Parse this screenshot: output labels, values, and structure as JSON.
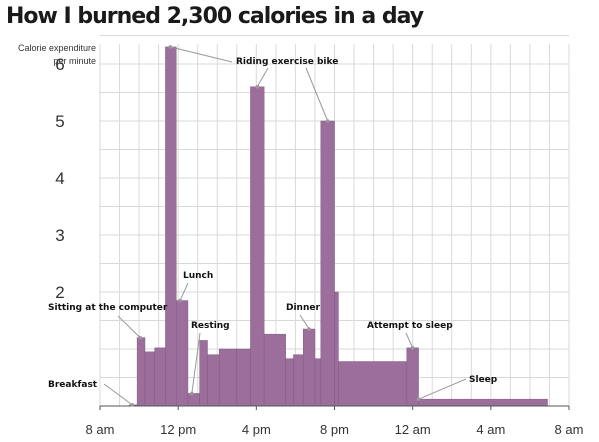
{
  "title": "How I burned 2,300 calories in a day",
  "colors": {
    "bar": "#9c6e9c",
    "bar_stroke": "#825982",
    "grid": "#d9d9d9",
    "annotation_line": "#999999"
  },
  "chart_data": {
    "type": "bar",
    "title": "How I burned 2,300 calories in a day",
    "ylabel": "Calorie expenditure per minute",
    "xlabel": "",
    "x_axis": "time of day (hours since midnight)",
    "xlim": [
      8,
      32
    ],
    "ylim": [
      0,
      7
    ],
    "grid": true,
    "x_ticks": [
      {
        "value": 8,
        "label": "8 am"
      },
      {
        "value": 12,
        "label": "12 pm"
      },
      {
        "value": 16,
        "label": "4 pm"
      },
      {
        "value": 20,
        "label": "8 pm"
      },
      {
        "value": 24,
        "label": "12 am"
      },
      {
        "value": 28,
        "label": "4 am"
      },
      {
        "value": 32,
        "label": "8 am"
      }
    ],
    "y_ticks": [
      {
        "value": 2,
        "label": "2"
      },
      {
        "value": 3,
        "label": "3"
      },
      {
        "value": 4,
        "label": "4"
      },
      {
        "value": 5,
        "label": "5"
      },
      {
        "value": 6,
        "label": "6"
      }
    ],
    "bars": [
      {
        "start": 9.5,
        "end": 9.9,
        "value": 0.02
      },
      {
        "start": 9.9,
        "end": 10.3,
        "value": 1.2
      },
      {
        "start": 10.3,
        "end": 10.8,
        "value": 0.95
      },
      {
        "start": 10.8,
        "end": 11.35,
        "value": 1.02
      },
      {
        "start": 11.35,
        "end": 11.9,
        "value": 6.3
      },
      {
        "start": 11.9,
        "end": 12.5,
        "value": 1.85
      },
      {
        "start": 12.5,
        "end": 13.1,
        "value": 0.22
      },
      {
        "start": 13.1,
        "end": 13.5,
        "value": 1.15
      },
      {
        "start": 13.5,
        "end": 14.1,
        "value": 0.9
      },
      {
        "start": 14.1,
        "end": 15.0,
        "value": 1.0
      },
      {
        "start": 15.0,
        "end": 15.7,
        "value": 1.0
      },
      {
        "start": 15.7,
        "end": 16.4,
        "value": 5.6
      },
      {
        "start": 16.4,
        "end": 17.5,
        "value": 1.26
      },
      {
        "start": 17.5,
        "end": 17.9,
        "value": 0.83
      },
      {
        "start": 17.9,
        "end": 18.4,
        "value": 0.9
      },
      {
        "start": 18.4,
        "end": 19.0,
        "value": 1.35
      },
      {
        "start": 19.0,
        "end": 19.3,
        "value": 0.83
      },
      {
        "start": 19.3,
        "end": 20.0,
        "value": 5.0
      },
      {
        "start": 20.0,
        "end": 20.2,
        "value": 2.0
      },
      {
        "start": 20.2,
        "end": 23.7,
        "value": 0.78
      },
      {
        "start": 23.7,
        "end": 24.3,
        "value": 1.02
      },
      {
        "start": 24.3,
        "end": 30.9,
        "value": 0.12
      }
    ],
    "annotations": [
      {
        "text": "Breakfast",
        "x": 9.65,
        "y": 0.02
      },
      {
        "text": "Sitting at the computer",
        "x": 10.05,
        "y": 1.2
      },
      {
        "text": "Lunch",
        "x": 12.1,
        "y": 1.85
      },
      {
        "text": "Resting",
        "x": 12.7,
        "y": 0.22
      },
      {
        "text": "Riding exercise bike",
        "x": 11.6,
        "y": 6.3
      },
      {
        "text": "Dinner",
        "x": 18.7,
        "y": 1.35
      },
      {
        "text": "Attempt to sleep",
        "x": 24.0,
        "y": 1.02
      },
      {
        "text": "Sleep",
        "x": 24.3,
        "y": 0.12
      }
    ]
  }
}
